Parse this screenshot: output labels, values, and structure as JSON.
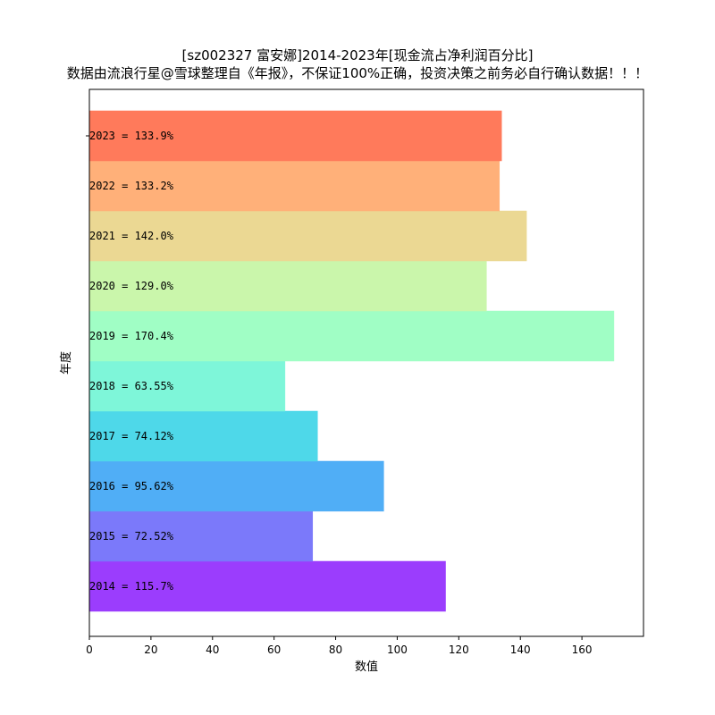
{
  "chart_data": {
    "type": "bar",
    "orientation": "horizontal",
    "title": "[sz002327 富安娜]2014-2023年[现金流占净利润百分比]",
    "subtitle": "数据由流浪行星@雪球整理自《年报》，不保证100%正确，投资决策之前务必自行确认数据！！！",
    "xlabel": "数值",
    "ylabel": "年度",
    "xlim": [
      0,
      180
    ],
    "xticks": [
      0,
      20,
      40,
      60,
      80,
      100,
      120,
      140,
      160
    ],
    "grid": false,
    "categories": [
      "2014",
      "2015",
      "2016",
      "2017",
      "2018",
      "2019",
      "2020",
      "2021",
      "2022",
      "2023"
    ],
    "values": [
      115.7,
      72.52,
      95.62,
      74.12,
      63.55,
      170.4,
      129.0,
      142.0,
      133.2,
      133.9
    ],
    "bar_labels": [
      "2014 = 115.7%",
      "2015 = 72.52%",
      "2016 = 95.62%",
      "2017 = 74.12%",
      "2018 = 63.55%",
      "2019 = 170.4%",
      "2020 = 129.0%",
      "2021 = 142.0%",
      "2022 = 133.2%",
      "2023 = 133.9%"
    ],
    "colors": [
      "#9b3dfd",
      "#7b79fa",
      "#50aef6",
      "#4ed8e9",
      "#7ef6d9",
      "#a0fec5",
      "#caf6ab",
      "#ebd893",
      "#ffb079",
      "#ff7a5b"
    ]
  }
}
